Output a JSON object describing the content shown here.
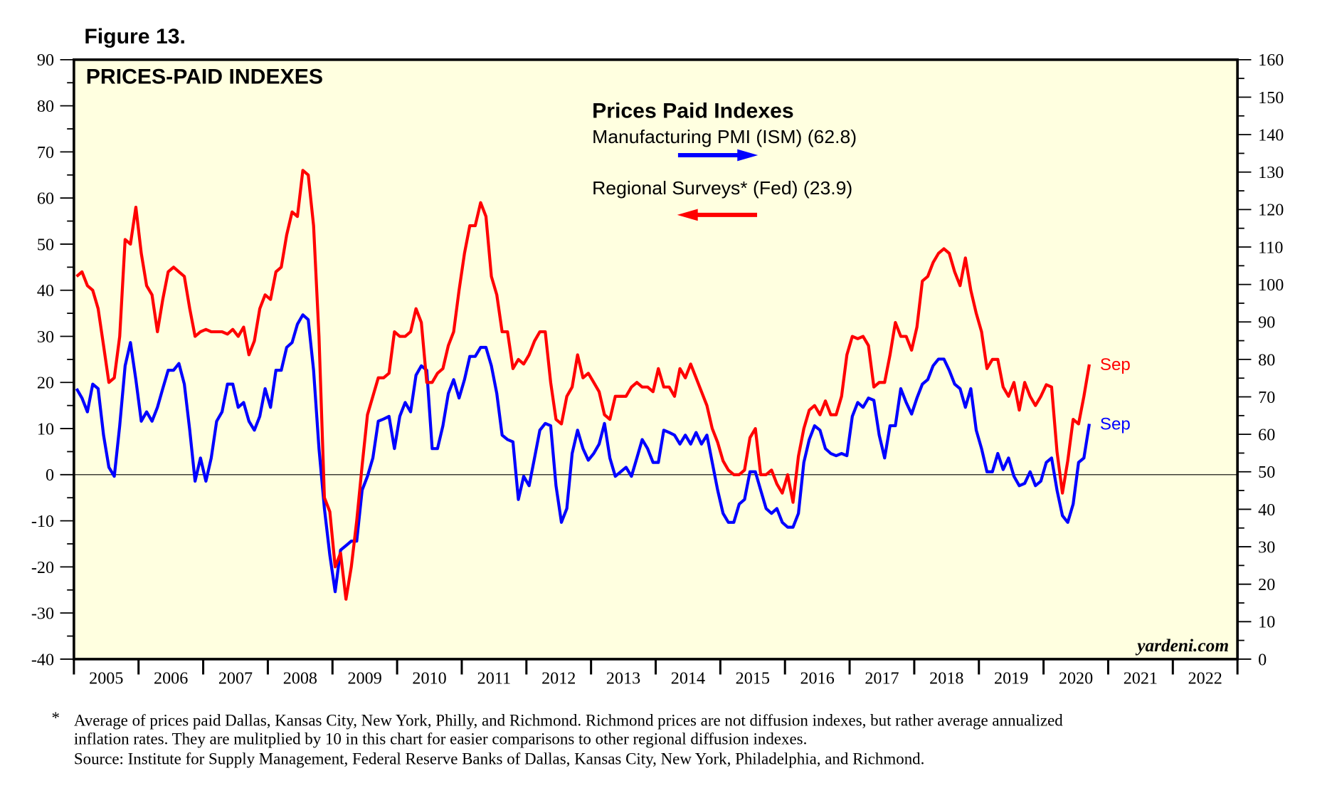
{
  "figure_label": "Figure 13.",
  "chart_data": {
    "type": "line",
    "title": "PRICES-PAID INDEXES",
    "legend": {
      "title": "Prices Paid Indexes",
      "entries": [
        "Manufacturing PMI (ISM) (62.8)",
        "Regional Surveys* (Fed) (23.9)"
      ],
      "placement": "top-center"
    },
    "x_start": "2005-01",
    "x_frequency": "monthly",
    "x_tick_labels": [
      "2005",
      "2006",
      "2007",
      "2008",
      "2009",
      "2010",
      "2011",
      "2012",
      "2013",
      "2014",
      "2015",
      "2016",
      "2017",
      "2018",
      "2019",
      "2020",
      "2021",
      "2022"
    ],
    "xlim": [
      "2005-01",
      "2022-12"
    ],
    "left_axis": {
      "ylim": [
        -40,
        90
      ],
      "ticks": [
        "90",
        "80",
        "70",
        "60",
        "50",
        "40",
        "30",
        "20",
        "10",
        "0",
        "-10",
        "-20",
        "-30",
        "-40"
      ]
    },
    "right_axis": {
      "ylim": [
        0,
        160
      ],
      "ticks": [
        "160",
        "150",
        "140",
        "130",
        "120",
        "110",
        "100",
        "90",
        "80",
        "70",
        "60",
        "50",
        "40",
        "30",
        "20",
        "10",
        "0"
      ]
    },
    "reference_line": {
      "left_axis_value": 0,
      "right_axis_value": 50
    },
    "grid": false,
    "background": "#ffffe0",
    "series": [
      {
        "name": "Manufacturing PMI (ISM)",
        "axis": "right",
        "color": "#0000ff",
        "end_label": "Sep",
        "last_value": 62.8,
        "values": [
          72.2,
          69.7,
          66,
          73.4,
          72.2,
          59.8,
          51.2,
          48.8,
          62.3,
          78.3,
          84.5,
          74.6,
          63.5,
          66,
          63.5,
          67.2,
          72.2,
          77.1,
          77.1,
          78.9,
          73.4,
          61.1,
          47.5,
          53.7,
          47.5,
          53.7,
          63.5,
          66,
          73.4,
          73.4,
          67.2,
          68.5,
          63.5,
          61.1,
          64.8,
          72.2,
          67.2,
          77.1,
          77.1,
          83.2,
          84.5,
          89.4,
          91.9,
          90.6,
          77.1,
          56.2,
          40.2,
          27.8,
          18,
          29.1,
          30.3,
          31.5,
          31.5,
          45.1,
          48.8,
          53.7,
          63.5,
          64.1,
          64.8,
          56.2,
          64.8,
          68.5,
          66,
          75.8,
          78.3,
          77.1,
          56.2,
          56.2,
          62.3,
          70.9,
          74.6,
          69.7,
          74.6,
          80.8,
          80.8,
          83.2,
          83.2,
          78.3,
          70.9,
          59.8,
          58.6,
          58,
          42.6,
          48.8,
          46.3,
          53.7,
          61.1,
          62.9,
          62.3,
          46.3,
          36.5,
          40.2,
          54.9,
          61.1,
          56.2,
          53.1,
          54.9,
          57.4,
          62.9,
          53.7,
          48.8,
          50,
          51.2,
          48.8,
          53.7,
          58.6,
          56.2,
          52.5,
          52.5,
          61.1,
          60.5,
          59.8,
          57.4,
          59.8,
          57.4,
          60.5,
          57.4,
          59.8,
          52.5,
          45.1,
          38.9,
          36.5,
          36.5,
          41.4,
          42.6,
          50,
          50,
          45.1,
          40.2,
          38.9,
          40.2,
          36.5,
          35.2,
          35.2,
          38.9,
          52.5,
          58.6,
          62.3,
          61.1,
          56.2,
          54.9,
          54.3,
          54.9,
          54.3,
          64.8,
          68.5,
          67.2,
          69.7,
          69.1,
          59.8,
          53.7,
          62.3,
          62.3,
          72.2,
          68.5,
          65.4,
          69.7,
          73.4,
          74.6,
          78.3,
          80.1,
          80.1,
          77.1,
          73.4,
          72.2,
          67.2,
          72.2,
          61.1,
          56.2,
          50,
          50,
          54.9,
          50.6,
          53.7,
          48.8,
          46.3,
          46.9,
          50,
          46.3,
          47.5,
          52.5,
          53.7,
          45.1,
          38.3,
          36.5,
          41.4,
          52.5,
          53.7,
          62.8
        ]
      },
      {
        "name": "Regional Surveys* (Fed)",
        "axis": "left",
        "color": "#ff0000",
        "end_label": "Sep",
        "last_value": 23.9,
        "values": [
          43,
          44,
          41,
          40,
          36,
          28,
          20,
          21,
          30,
          51,
          50,
          58,
          48,
          41,
          39,
          31,
          38,
          44,
          45,
          44,
          43,
          36,
          30,
          31,
          31.5,
          31,
          31,
          31,
          30.5,
          31.5,
          30,
          32,
          26,
          29,
          36,
          39,
          38,
          44,
          45,
          52,
          57,
          56,
          66,
          65,
          54,
          30,
          -5,
          -8,
          -20,
          -17,
          -27,
          -20,
          -10,
          2,
          13,
          17,
          21,
          21,
          22,
          31,
          30,
          30,
          31,
          36,
          33,
          20,
          20,
          22,
          23,
          28,
          31,
          40,
          48,
          54,
          54,
          59,
          56,
          43,
          39,
          31,
          31,
          23,
          25,
          24,
          26,
          29,
          31,
          31,
          20,
          12,
          11,
          17,
          19,
          26,
          21,
          22,
          20,
          18,
          13,
          12,
          17,
          17,
          17,
          19,
          20,
          19,
          19,
          18,
          23,
          19,
          19,
          17,
          23,
          21,
          24,
          21,
          18,
          15,
          10,
          7,
          3,
          1,
          0,
          0,
          1,
          8,
          10,
          0,
          0,
          1,
          -2,
          -4,
          0,
          -6,
          4,
          10,
          14,
          15,
          13,
          16,
          13,
          13,
          17,
          26,
          30,
          29.5,
          30,
          28,
          19,
          20,
          20,
          26,
          33,
          30,
          30,
          27,
          32,
          42,
          43,
          46,
          48,
          49,
          48,
          44,
          41,
          47,
          40,
          35,
          31,
          23,
          25,
          25,
          19,
          17,
          20,
          14,
          20,
          17,
          15,
          17,
          19.5,
          19,
          5,
          -4,
          3,
          12,
          11,
          17,
          23.9
        ]
      }
    ],
    "watermark": "yardeni.com"
  },
  "footnote": {
    "marker": "*",
    "line1": "Average of prices paid Dallas, Kansas City, New York, Philly, and Richmond. Richmond prices are not diffusion indexes, but rather average annualized",
    "line2": "inflation rates. They are mulitplied by 10 in this chart for easier comparisons to other regional diffusion indexes.",
    "source": "Source: Institute for Supply Management, Federal Reserve Banks of Dallas, Kansas City, New York, Philadelphia, and Richmond."
  }
}
